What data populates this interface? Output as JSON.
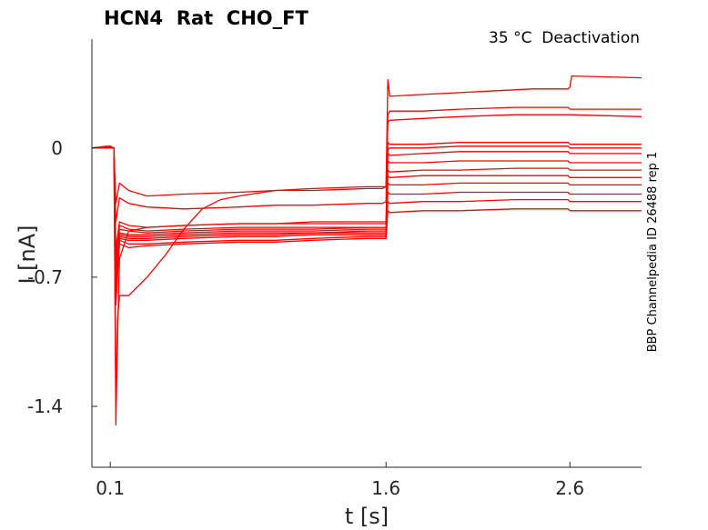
{
  "chart_data": {
    "type": "line",
    "title": "HCN4  Rat  CHO_FT",
    "condition": "35 °C  Deactivation",
    "side_label": "BBP Channelpedia ID 26488 rep 1",
    "xlabel": "t [s]",
    "ylabel": "I [nA]",
    "xlim": [
      0,
      2.99
    ],
    "ylim": [
      -1.73,
      0.59
    ],
    "x_ticks": [
      {
        "value": 0.1,
        "label": "0.1"
      },
      {
        "value": 1.6,
        "label": "1.6"
      },
      {
        "value": 2.6,
        "label": "2.6"
      }
    ],
    "y_ticks": [
      {
        "value": 0,
        "label": "0"
      },
      {
        "value": -0.7,
        "label": "-0.7"
      },
      {
        "value": -1.4,
        "label": "-1.4"
      }
    ],
    "grid": false,
    "line_color": "#ff0000",
    "series": [
      {
        "values": [
          [
            0,
            0
          ],
          [
            0.08,
            0.01
          ],
          [
            0.12,
            0.0
          ],
          [
            0.13,
            -0.3
          ],
          [
            0.15,
            -0.19
          ],
          [
            0.2,
            -0.23
          ],
          [
            0.3,
            -0.26
          ],
          [
            0.5,
            -0.25
          ],
          [
            0.8,
            -0.24
          ],
          [
            1.0,
            -0.23
          ],
          [
            1.2,
            -0.23
          ],
          [
            1.5,
            -0.22
          ],
          [
            1.58,
            -0.22
          ],
          [
            1.6,
            -0.21
          ],
          [
            1.61,
            0.37
          ],
          [
            1.62,
            0.28
          ],
          [
            1.8,
            0.29
          ],
          [
            2.0,
            0.3
          ],
          [
            2.2,
            0.31
          ],
          [
            2.4,
            0.32
          ],
          [
            2.59,
            0.32
          ],
          [
            2.6,
            0.33
          ],
          [
            2.61,
            0.39
          ],
          [
            2.99,
            0.38
          ]
        ]
      },
      {
        "values": [
          [
            0,
            0
          ],
          [
            0.1,
            0.01
          ],
          [
            0.12,
            0.0
          ],
          [
            0.13,
            -0.4
          ],
          [
            0.15,
            -0.27
          ],
          [
            0.2,
            -0.3
          ],
          [
            0.3,
            -0.32
          ],
          [
            0.5,
            -0.33
          ],
          [
            0.8,
            -0.32
          ],
          [
            1.0,
            -0.31
          ],
          [
            1.2,
            -0.31
          ],
          [
            1.5,
            -0.3
          ],
          [
            1.58,
            -0.3
          ],
          [
            1.6,
            -0.29
          ],
          [
            1.61,
            0.18
          ],
          [
            1.62,
            0.2
          ],
          [
            1.8,
            0.2
          ],
          [
            2.0,
            0.21
          ],
          [
            2.3,
            0.22
          ],
          [
            2.59,
            0.22
          ],
          [
            2.6,
            0.21
          ],
          [
            2.99,
            0.21
          ]
        ]
      },
      {
        "values": [
          [
            0,
            0
          ],
          [
            0.1,
            0.0
          ],
          [
            0.12,
            0.0
          ],
          [
            0.13,
            -1.35
          ],
          [
            0.14,
            -0.92
          ],
          [
            0.15,
            -0.8
          ],
          [
            0.2,
            -0.8
          ],
          [
            0.3,
            -0.7
          ],
          [
            0.4,
            -0.58
          ],
          [
            0.5,
            -0.44
          ],
          [
            0.6,
            -0.33
          ],
          [
            0.7,
            -0.28
          ],
          [
            0.8,
            -0.26
          ],
          [
            1.0,
            -0.23
          ],
          [
            1.2,
            -0.22
          ],
          [
            1.5,
            -0.21
          ],
          [
            1.58,
            -0.21
          ],
          [
            1.6,
            -0.21
          ],
          [
            1.61,
            0.14
          ],
          [
            1.62,
            0.15
          ],
          [
            1.8,
            0.16
          ],
          [
            2.0,
            0.17
          ],
          [
            2.3,
            0.18
          ],
          [
            2.59,
            0.18
          ],
          [
            2.6,
            0.18
          ],
          [
            2.99,
            0.17
          ]
        ]
      },
      {
        "values": [
          [
            0,
            0
          ],
          [
            0.1,
            0.0
          ],
          [
            0.12,
            0.0
          ],
          [
            0.13,
            -1.5
          ],
          [
            0.14,
            -1.0
          ],
          [
            0.15,
            -0.6
          ],
          [
            0.2,
            -0.45
          ],
          [
            0.3,
            -0.43
          ],
          [
            0.5,
            -0.42
          ],
          [
            0.8,
            -0.41
          ],
          [
            1.0,
            -0.41
          ],
          [
            1.2,
            -0.4
          ],
          [
            1.5,
            -0.4
          ],
          [
            1.58,
            -0.4
          ],
          [
            1.6,
            -0.4
          ],
          [
            1.61,
            0.03
          ],
          [
            1.62,
            0.02
          ],
          [
            1.8,
            0.02
          ],
          [
            2.0,
            0.03
          ],
          [
            2.3,
            0.03
          ],
          [
            2.59,
            0.03
          ],
          [
            2.6,
            0.02
          ],
          [
            2.99,
            0.02
          ]
        ]
      },
      {
        "values": [
          [
            0,
            0
          ],
          [
            0.1,
            0.01
          ],
          [
            0.12,
            0.0
          ],
          [
            0.13,
            -0.55
          ],
          [
            0.15,
            -0.4
          ],
          [
            0.2,
            -0.42
          ],
          [
            0.3,
            -0.43
          ],
          [
            0.5,
            -0.42
          ],
          [
            0.8,
            -0.41
          ],
          [
            1.0,
            -0.41
          ],
          [
            1.2,
            -0.41
          ],
          [
            1.5,
            -0.41
          ],
          [
            1.58,
            -0.41
          ],
          [
            1.6,
            -0.41
          ],
          [
            1.61,
            -0.01
          ],
          [
            1.62,
            0.0
          ],
          [
            1.8,
            0.0
          ],
          [
            2.0,
            0.01
          ],
          [
            2.3,
            0.01
          ],
          [
            2.59,
            0.01
          ],
          [
            2.6,
            0.0
          ],
          [
            2.99,
            0.0
          ]
        ]
      },
      {
        "values": [
          [
            0,
            0
          ],
          [
            0.1,
            0.0
          ],
          [
            0.12,
            0.0
          ],
          [
            0.13,
            -0.6
          ],
          [
            0.15,
            -0.42
          ],
          [
            0.2,
            -0.44
          ],
          [
            0.3,
            -0.45
          ],
          [
            0.5,
            -0.44
          ],
          [
            0.8,
            -0.43
          ],
          [
            1.0,
            -0.43
          ],
          [
            1.2,
            -0.43
          ],
          [
            1.5,
            -0.43
          ],
          [
            1.58,
            -0.43
          ],
          [
            1.6,
            -0.43
          ],
          [
            1.61,
            -0.03
          ],
          [
            1.62,
            -0.04
          ],
          [
            1.8,
            -0.03
          ],
          [
            2.0,
            -0.02
          ],
          [
            2.3,
            -0.02
          ],
          [
            2.59,
            -0.02
          ],
          [
            2.6,
            -0.03
          ],
          [
            2.99,
            -0.03
          ]
        ]
      },
      {
        "values": [
          [
            0,
            0
          ],
          [
            0.1,
            0.0
          ],
          [
            0.12,
            0.0
          ],
          [
            0.13,
            -0.65
          ],
          [
            0.15,
            -0.44
          ],
          [
            0.2,
            -0.45
          ],
          [
            0.3,
            -0.46
          ],
          [
            0.5,
            -0.45
          ],
          [
            0.8,
            -0.44
          ],
          [
            1.0,
            -0.44
          ],
          [
            1.2,
            -0.44
          ],
          [
            1.5,
            -0.43
          ],
          [
            1.58,
            -0.43
          ],
          [
            1.6,
            -0.43
          ],
          [
            1.61,
            -0.07
          ],
          [
            1.62,
            -0.08
          ],
          [
            1.8,
            -0.08
          ],
          [
            2.0,
            -0.07
          ],
          [
            2.3,
            -0.07
          ],
          [
            2.59,
            -0.07
          ],
          [
            2.6,
            -0.08
          ],
          [
            2.99,
            -0.08
          ]
        ]
      },
      {
        "values": [
          [
            0,
            0
          ],
          [
            0.1,
            0.0
          ],
          [
            0.12,
            0.0
          ],
          [
            0.13,
            -0.7
          ],
          [
            0.15,
            -0.46
          ],
          [
            0.2,
            -0.47
          ],
          [
            0.3,
            -0.47
          ],
          [
            0.5,
            -0.46
          ],
          [
            0.8,
            -0.45
          ],
          [
            1.0,
            -0.45
          ],
          [
            1.2,
            -0.45
          ],
          [
            1.5,
            -0.44
          ],
          [
            1.58,
            -0.44
          ],
          [
            1.6,
            -0.44
          ],
          [
            1.61,
            -0.12
          ],
          [
            1.62,
            -0.13
          ],
          [
            1.8,
            -0.12
          ],
          [
            2.0,
            -0.12
          ],
          [
            2.3,
            -0.11
          ],
          [
            2.59,
            -0.11
          ],
          [
            2.6,
            -0.12
          ],
          [
            2.99,
            -0.12
          ]
        ]
      },
      {
        "values": [
          [
            0,
            0
          ],
          [
            0.1,
            0.0
          ],
          [
            0.12,
            0.0
          ],
          [
            0.13,
            -0.7
          ],
          [
            0.15,
            -0.47
          ],
          [
            0.2,
            -0.48
          ],
          [
            0.3,
            -0.48
          ],
          [
            0.5,
            -0.47
          ],
          [
            0.8,
            -0.46
          ],
          [
            1.0,
            -0.46
          ],
          [
            1.2,
            -0.46
          ],
          [
            1.5,
            -0.45
          ],
          [
            1.58,
            -0.45
          ],
          [
            1.6,
            -0.45
          ],
          [
            1.61,
            -0.15
          ],
          [
            1.62,
            -0.16
          ],
          [
            1.8,
            -0.15
          ],
          [
            2.0,
            -0.15
          ],
          [
            2.3,
            -0.15
          ],
          [
            2.59,
            -0.15
          ],
          [
            2.6,
            -0.16
          ],
          [
            2.99,
            -0.16
          ]
        ]
      },
      {
        "values": [
          [
            0,
            0
          ],
          [
            0.1,
            0.0
          ],
          [
            0.12,
            0.0
          ],
          [
            0.13,
            -0.75
          ],
          [
            0.15,
            -0.48
          ],
          [
            0.2,
            -0.49
          ],
          [
            0.3,
            -0.49
          ],
          [
            0.5,
            -0.48
          ],
          [
            0.8,
            -0.47
          ],
          [
            1.0,
            -0.47
          ],
          [
            1.2,
            -0.46
          ],
          [
            1.5,
            -0.46
          ],
          [
            1.58,
            -0.46
          ],
          [
            1.6,
            -0.46
          ],
          [
            1.61,
            -0.19
          ],
          [
            1.62,
            -0.2
          ],
          [
            1.8,
            -0.2
          ],
          [
            2.0,
            -0.19
          ],
          [
            2.3,
            -0.19
          ],
          [
            2.59,
            -0.19
          ],
          [
            2.6,
            -0.2
          ],
          [
            2.99,
            -0.2
          ]
        ]
      },
      {
        "values": [
          [
            0,
            0
          ],
          [
            0.1,
            0.0
          ],
          [
            0.12,
            0.0
          ],
          [
            0.13,
            -0.78
          ],
          [
            0.15,
            -0.49
          ],
          [
            0.2,
            -0.5
          ],
          [
            0.3,
            -0.5
          ],
          [
            0.5,
            -0.49
          ],
          [
            0.8,
            -0.48
          ],
          [
            1.0,
            -0.48
          ],
          [
            1.2,
            -0.47
          ],
          [
            1.5,
            -0.47
          ],
          [
            1.58,
            -0.47
          ],
          [
            1.6,
            -0.47
          ],
          [
            1.61,
            -0.24
          ],
          [
            1.62,
            -0.25
          ],
          [
            1.8,
            -0.25
          ],
          [
            2.0,
            -0.24
          ],
          [
            2.3,
            -0.24
          ],
          [
            2.59,
            -0.24
          ],
          [
            2.6,
            -0.25
          ],
          [
            2.99,
            -0.25
          ]
        ]
      },
      {
        "values": [
          [
            0,
            0
          ],
          [
            0.1,
            0.0
          ],
          [
            0.12,
            0.0
          ],
          [
            0.13,
            -0.8
          ],
          [
            0.15,
            -0.5
          ],
          [
            0.2,
            -0.52
          ],
          [
            0.3,
            -0.52
          ],
          [
            0.5,
            -0.51
          ],
          [
            0.8,
            -0.5
          ],
          [
            1.0,
            -0.5
          ],
          [
            1.2,
            -0.49
          ],
          [
            1.5,
            -0.48
          ],
          [
            1.58,
            -0.48
          ],
          [
            1.6,
            -0.48
          ],
          [
            1.61,
            -0.29
          ],
          [
            1.62,
            -0.3
          ],
          [
            1.8,
            -0.29
          ],
          [
            2.0,
            -0.29
          ],
          [
            2.3,
            -0.28
          ],
          [
            2.59,
            -0.28
          ],
          [
            2.6,
            -0.29
          ],
          [
            2.99,
            -0.29
          ]
        ]
      },
      {
        "values": [
          [
            0,
            0
          ],
          [
            0.1,
            0.0
          ],
          [
            0.12,
            0.0
          ],
          [
            0.13,
            -0.85
          ],
          [
            0.15,
            -0.52
          ],
          [
            0.2,
            -0.54
          ],
          [
            0.3,
            -0.53
          ],
          [
            0.5,
            -0.52
          ],
          [
            0.8,
            -0.51
          ],
          [
            1.0,
            -0.51
          ],
          [
            1.2,
            -0.5
          ],
          [
            1.5,
            -0.49
          ],
          [
            1.58,
            -0.49
          ],
          [
            1.6,
            -0.49
          ],
          [
            1.61,
            -0.34
          ],
          [
            1.62,
            -0.35
          ],
          [
            1.8,
            -0.34
          ],
          [
            2.0,
            -0.34
          ],
          [
            2.3,
            -0.33
          ],
          [
            2.59,
            -0.33
          ],
          [
            2.6,
            -0.34
          ],
          [
            2.99,
            -0.34
          ]
        ]
      }
    ]
  }
}
